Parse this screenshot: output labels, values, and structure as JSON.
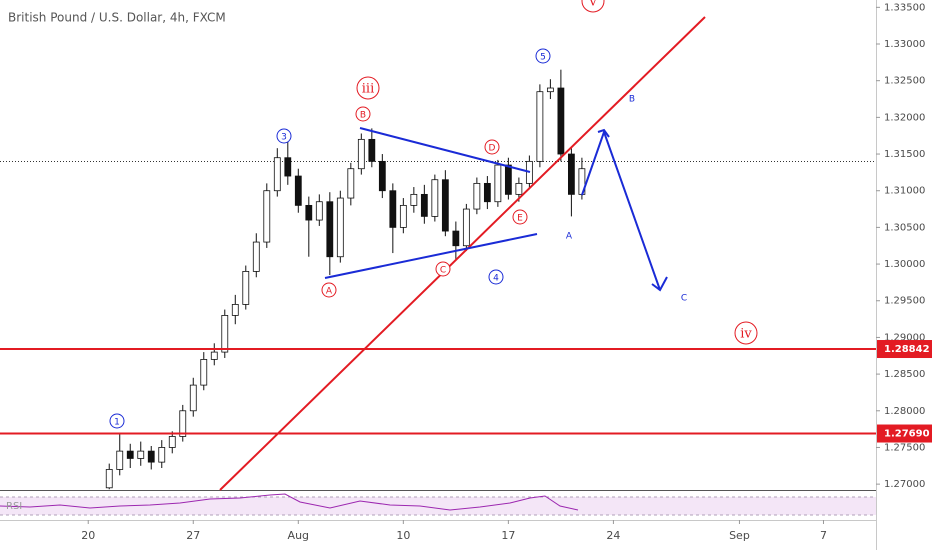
{
  "chart_data": {
    "type": "candlestick",
    "title": "British Pound / U.S. Dollar, 4h, FXCM",
    "indicator_label": "RSI",
    "up_color": "#ffffff",
    "down_color": "#111111",
    "wick_color": "#111111",
    "x": [
      1,
      1.5,
      2,
      2.5,
      3,
      3.5,
      4,
      4.5,
      5,
      5.5,
      6,
      6.5,
      7,
      7.5,
      8,
      8.5,
      9,
      9.5,
      10,
      10.5,
      11,
      11.5,
      12,
      12.5,
      13,
      13.5,
      14,
      14.5,
      15,
      15.5,
      16,
      16.5,
      17,
      17.5,
      18,
      18.5,
      19,
      19.5,
      20,
      20.5,
      21,
      21.5,
      22,
      22.5,
      23,
      23.5
    ],
    "open": [
      1.2695,
      1.272,
      1.2745,
      1.2735,
      1.2745,
      1.273,
      1.275,
      1.2765,
      1.28,
      1.2835,
      1.287,
      1.288,
      1.293,
      1.2945,
      1.299,
      1.303,
      1.31,
      1.3145,
      1.312,
      1.308,
      1.306,
      1.3085,
      1.301,
      1.309,
      1.313,
      1.317,
      1.314,
      1.31,
      1.305,
      1.308,
      1.3095,
      1.3065,
      1.3115,
      1.3045,
      1.3025,
      1.3075,
      1.311,
      1.3085,
      1.3135,
      1.3095,
      1.311,
      1.314,
      1.3235,
      1.324,
      1.315,
      1.3095
    ],
    "high": [
      1.2728,
      1.2768,
      1.2755,
      1.2758,
      1.2752,
      1.276,
      1.2772,
      1.2808,
      1.2845,
      1.288,
      1.2892,
      1.2938,
      1.2958,
      1.2998,
      1.3042,
      1.311,
      1.3158,
      1.3172,
      1.313,
      1.3092,
      1.3095,
      1.3098,
      1.31,
      1.3138,
      1.3178,
      1.3185,
      1.315,
      1.311,
      1.309,
      1.3105,
      1.3108,
      1.3122,
      1.3128,
      1.3058,
      1.3082,
      1.3118,
      1.312,
      1.3142,
      1.3145,
      1.3118,
      1.3148,
      1.3245,
      1.3252,
      1.3265,
      1.3158,
      1.3145
    ],
    "low": [
      1.2693,
      1.2712,
      1.2722,
      1.2725,
      1.272,
      1.2722,
      1.2742,
      1.2758,
      1.2792,
      1.2828,
      1.2862,
      1.2872,
      1.2918,
      1.2938,
      1.2982,
      1.3022,
      1.3092,
      1.3108,
      1.307,
      1.301,
      1.3052,
      1.2985,
      1.3002,
      1.308,
      1.3122,
      1.3132,
      1.309,
      1.3015,
      1.3042,
      1.307,
      1.3055,
      1.3058,
      1.3038,
      1.3005,
      1.3018,
      1.3068,
      1.3075,
      1.3078,
      1.3088,
      1.3085,
      1.3102,
      1.3132,
      1.3225,
      1.314,
      1.3065,
      1.3088
    ],
    "close": [
      1.272,
      1.2745,
      1.2735,
      1.2745,
      1.273,
      1.275,
      1.2765,
      1.28,
      1.2835,
      1.287,
      1.288,
      1.293,
      1.2945,
      1.299,
      1.303,
      1.31,
      1.3145,
      1.312,
      1.308,
      1.306,
      1.3085,
      1.301,
      1.309,
      1.313,
      1.317,
      1.314,
      1.31,
      1.305,
      1.308,
      1.3095,
      1.3065,
      1.3115,
      1.3045,
      1.3025,
      1.3075,
      1.311,
      1.3085,
      1.3135,
      1.3095,
      1.311,
      1.314,
      1.3235,
      1.324,
      1.315,
      1.3095,
      1.313
    ],
    "xlim": [
      -4.2,
      37.5
    ],
    "xticks": [
      {
        "value": 0,
        "label": "20"
      },
      {
        "value": 5,
        "label": "27"
      },
      {
        "value": 10,
        "label": "Aug"
      },
      {
        "value": 15,
        "label": "10"
      },
      {
        "value": 20,
        "label": "17"
      },
      {
        "value": 25,
        "label": "24"
      },
      {
        "value": 31,
        "label": "Sep"
      },
      {
        "value": 35,
        "label": "7"
      }
    ],
    "ylim": [
      1.2692,
      1.336
    ],
    "yticks": [
      {
        "value": 1.335,
        "label": "1.33500"
      },
      {
        "value": 1.33,
        "label": "1.33000"
      },
      {
        "value": 1.325,
        "label": "1.32500"
      },
      {
        "value": 1.32,
        "label": "1.32000"
      },
      {
        "value": 1.315,
        "label": "1.31500"
      },
      {
        "value": 1.31,
        "label": "1.31000"
      },
      {
        "value": 1.305,
        "label": "1.30500"
      },
      {
        "value": 1.3,
        "label": "1.30000"
      },
      {
        "value": 1.295,
        "label": "1.29500"
      },
      {
        "value": 1.29,
        "label": "1.29000"
      },
      {
        "value": 1.285,
        "label": "1.28500"
      },
      {
        "value": 1.28,
        "label": "1.28000"
      },
      {
        "value": 1.275,
        "label": "1.27500"
      },
      {
        "value": 1.27,
        "label": "1.27000"
      }
    ],
    "levels": [
      {
        "value": 1.28842,
        "label": "1.28842"
      },
      {
        "value": 1.2769,
        "label": "1.27690"
      }
    ],
    "level_color": "#e31b23",
    "wave_labels": [
      "iii",
      "v",
      "iv",
      "1",
      "3",
      "5",
      "4",
      "A",
      "B",
      "C",
      "D",
      "E",
      "A",
      "B",
      "C"
    ]
  }
}
